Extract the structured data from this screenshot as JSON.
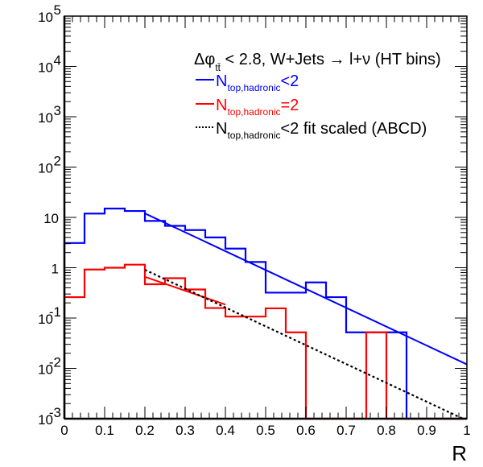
{
  "chart_data": {
    "type": "line",
    "title": "",
    "xlabel": "R",
    "ylabel": "",
    "xlim": [
      0,
      1
    ],
    "ylim": [
      0.001,
      100000
    ],
    "yscale": "log",
    "grid": false,
    "x_ticks": [
      "0",
      "0.1",
      "0.2",
      "0.3",
      "0.4",
      "0.5",
      "0.6",
      "0.7",
      "0.8",
      "0.9",
      "1"
    ],
    "x_tick_values": [
      0,
      0.1,
      0.2,
      0.3,
      0.4,
      0.5,
      0.6,
      0.7,
      0.8,
      0.9,
      1
    ],
    "y_ticks": [
      {
        "value": 100000,
        "base": "10",
        "exp": "5"
      },
      {
        "value": 10000,
        "base": "10",
        "exp": "4"
      },
      {
        "value": 1000,
        "base": "10",
        "exp": "3"
      },
      {
        "value": 100,
        "base": "10",
        "exp": "2"
      },
      {
        "value": 10,
        "base": "10",
        "exp": ""
      },
      {
        "value": 1,
        "base": "1",
        "exp": ""
      },
      {
        "value": 0.1,
        "base": "10",
        "exp": "-1"
      },
      {
        "value": 0.01,
        "base": "10",
        "exp": "-2"
      },
      {
        "value": 0.001,
        "base": "10",
        "exp": "-3"
      }
    ],
    "bin_edges": [
      0,
      0.05,
      0.1,
      0.15,
      0.2,
      0.25,
      0.3,
      0.35,
      0.4,
      0.45,
      0.5,
      0.55,
      0.6,
      0.65,
      0.7,
      0.75,
      0.8,
      0.85,
      0.9,
      0.95,
      1.0
    ],
    "legend": {
      "placement": "top-right",
      "header": {
        "prefix": "Δφ",
        "sub": "tt̄",
        "suffix": " < 2.8, W+Jets → l+ν (HT bins)"
      },
      "entries": [
        {
          "main": "N",
          "sub": "top,hadronic",
          "suffix": "<2",
          "color": "#0000ff",
          "style": "solid"
        },
        {
          "main": "N",
          "sub": "top,hadronic",
          "suffix": "=2",
          "color": "#ff0000",
          "style": "solid"
        },
        {
          "main": "N",
          "sub": "top,hadronic",
          "suffix": "<2 fit scaled (ABCD)",
          "color": "#000000",
          "style": "dotted"
        }
      ]
    },
    "series": [
      {
        "name": "N_top,hadronic<2",
        "kind": "histogram",
        "color": "#0000ff",
        "values": [
          3.1,
          11.9,
          15.0,
          13.4,
          8.5,
          6.8,
          5.6,
          4.0,
          2.4,
          1.3,
          0.32,
          0.32,
          0.51,
          0.26,
          0.052,
          0.052,
          0.052,
          0,
          0,
          0
        ]
      },
      {
        "name": "N_top,hadronic=2",
        "kind": "histogram",
        "color": "#ff0000",
        "values": [
          0.26,
          0.92,
          1.0,
          1.15,
          0.47,
          0.62,
          0.37,
          0.158,
          0.107,
          0.107,
          0.156,
          0.052,
          0,
          0,
          0,
          0.052,
          0,
          0,
          0,
          0
        ]
      },
      {
        "name": "N_top,hadronic<2 fit",
        "kind": "exponential-fit",
        "color": "#0000ff",
        "style": "solid",
        "x_range": [
          0.2,
          1.0
        ],
        "y_start": 12.0,
        "y_end": 0.012
      },
      {
        "name": "N_top,hadronic=2 fit",
        "kind": "exponential-fit",
        "color": "#ff0000",
        "style": "solid",
        "x_range": [
          0.2,
          0.4
        ],
        "y_start": 0.66,
        "y_end": 0.185
      },
      {
        "name": "N_top,hadronic<2 fit scaled (ABCD)",
        "kind": "exponential-fit",
        "color": "#000000",
        "style": "dotted",
        "x_range": [
          0.2,
          0.99
        ],
        "y_start": 0.91,
        "y_end": 0.001
      }
    ]
  }
}
